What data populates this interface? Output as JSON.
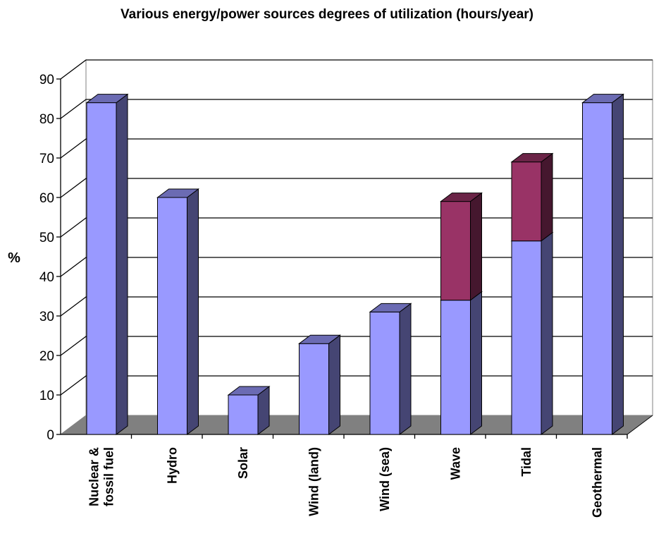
{
  "chart_data": {
    "type": "bar",
    "title": "Various energy/power sources degrees of utilization (hours/year)",
    "ylabel": "%",
    "xlabel": "",
    "ylim": [
      0,
      90
    ],
    "yticks": [
      "0",
      "10",
      "20",
      "30",
      "40",
      "50",
      "60",
      "70",
      "80",
      "90"
    ],
    "categories": [
      "Nuclear & fossil fuel",
      "Hydro",
      "Solar",
      "Wind (land)",
      "Wind (sea)",
      "Wave",
      "Tidal",
      "Geothermal"
    ],
    "category_lines": [
      [
        "Nuclear &",
        "fossil fuel"
      ],
      [
        "Hydro"
      ],
      [
        "Solar"
      ],
      [
        "Wind (land)"
      ],
      [
        "Wind (sea)"
      ],
      [
        "Wave"
      ],
      [
        "Tidal"
      ],
      [
        "Geothermal"
      ]
    ],
    "stacked": true,
    "three_d": true,
    "grid": true,
    "series": [
      {
        "values": [
          84,
          60,
          10,
          23,
          31,
          34,
          49,
          84
        ],
        "color": "#9999ff"
      },
      {
        "values": [
          0,
          0,
          0,
          0,
          0,
          25,
          20,
          0
        ],
        "color": "#993366"
      }
    ],
    "colors": {
      "floor": "#808080",
      "wall": "#ffffff",
      "gridline": "#000000"
    }
  }
}
